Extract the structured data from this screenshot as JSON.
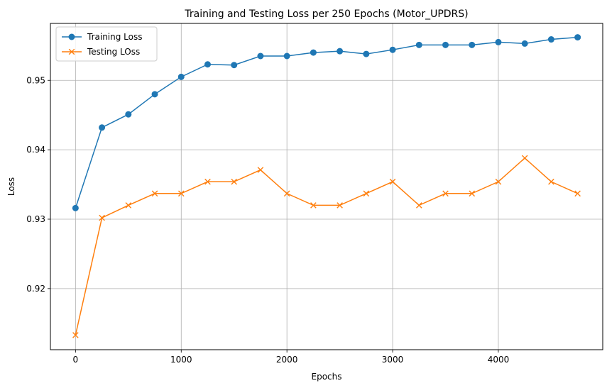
{
  "chart_data": {
    "type": "line",
    "title": "Training and Testing Loss per 250 Epochs (Motor_UPDRS)",
    "xlabel": "Epochs",
    "ylabel": "Loss",
    "x": [
      0,
      250,
      500,
      750,
      1000,
      1250,
      1500,
      1750,
      2000,
      2250,
      2500,
      2750,
      3000,
      3250,
      3500,
      3750,
      4000,
      4250,
      4500,
      4750
    ],
    "xlim": [
      -237.5,
      4987.5
    ],
    "ylim": [
      0.9112,
      0.9582
    ],
    "xticks": [
      0,
      1000,
      2000,
      3000,
      4000
    ],
    "xtick_labels": [
      "0",
      "1000",
      "2000",
      "3000",
      "4000"
    ],
    "yticks": [
      0.92,
      0.93,
      0.94,
      0.95
    ],
    "ytick_labels": [
      "0.92",
      "0.93",
      "0.94",
      "0.95"
    ],
    "grid": true,
    "legend_position": "top-left",
    "series": [
      {
        "name": "Training Loss",
        "color": "#1f77b4",
        "marker": "circle",
        "values": [
          0.9316,
          0.9432,
          0.9451,
          0.948,
          0.9505,
          0.9523,
          0.9522,
          0.9535,
          0.9535,
          0.954,
          0.9542,
          0.9538,
          0.9544,
          0.9551,
          0.9551,
          0.9551,
          0.9555,
          0.9553,
          0.9559,
          0.9562
        ]
      },
      {
        "name": "Testing LOss",
        "color": "#ff7f0e",
        "marker": "x",
        "values": [
          0.9133,
          0.9302,
          0.932,
          0.9337,
          0.9337,
          0.9354,
          0.9354,
          0.9371,
          0.9337,
          0.932,
          0.932,
          0.9337,
          0.9354,
          0.932,
          0.9337,
          0.9337,
          0.9354,
          0.9388,
          0.9354,
          0.9337
        ]
      }
    ]
  }
}
